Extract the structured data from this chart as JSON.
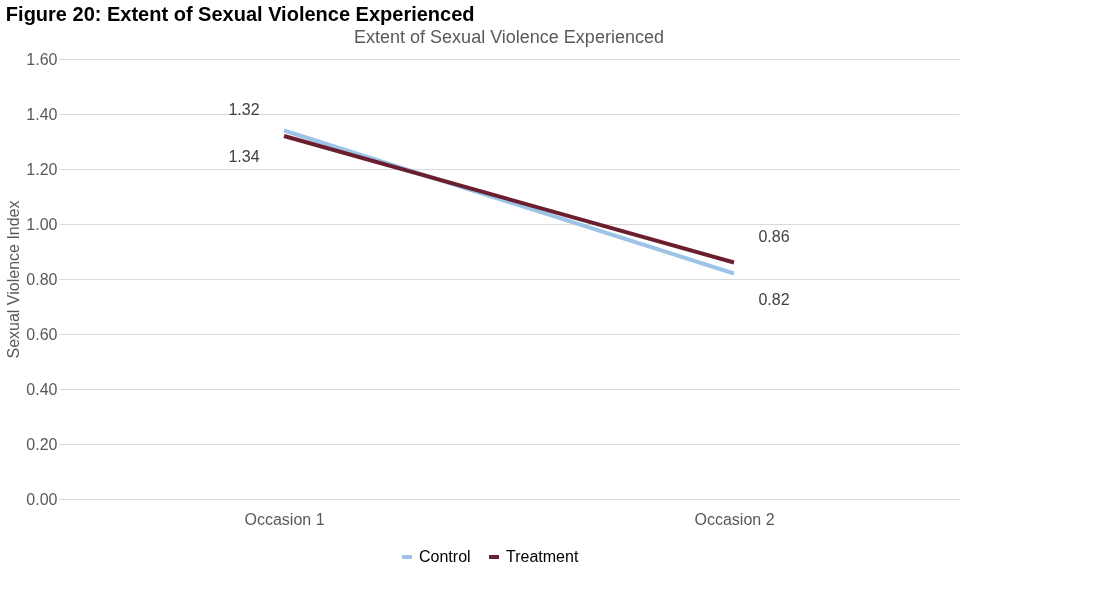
{
  "chart_data": {
    "type": "line",
    "title": "Figure 20: Extent of Sexual Violence Experienced",
    "subtitle": "Extent of Sexual Violence Experienced",
    "ylabel": "Sexual Violence Index",
    "categories": [
      "Occasion 1",
      "Occasion 2"
    ],
    "series": [
      {
        "name": "Control",
        "color": "#9dc3e6",
        "values": [
          1.34,
          0.82
        ]
      },
      {
        "name": "Treatment",
        "color": "#6b1e2e",
        "values": [
          1.32,
          0.86
        ]
      }
    ],
    "ylim": [
      0,
      1.6
    ],
    "yticks": [
      {
        "value": 0,
        "label": "0.00"
      },
      {
        "value": 0.2,
        "label": "0.20"
      },
      {
        "value": 0.4,
        "label": "0.40"
      },
      {
        "value": 0.6,
        "label": "0.60"
      },
      {
        "value": 0.8,
        "label": "0.80"
      },
      {
        "value": 1.0,
        "label": "1.00"
      },
      {
        "value": 1.2,
        "label": "1.20"
      },
      {
        "value": 1.4,
        "label": "1.40"
      },
      {
        "value": 1.6,
        "label": "1.60"
      }
    ],
    "grid": "y",
    "legend": "bottom",
    "data_labels": true,
    "marker": "none",
    "line_style": "solid"
  }
}
